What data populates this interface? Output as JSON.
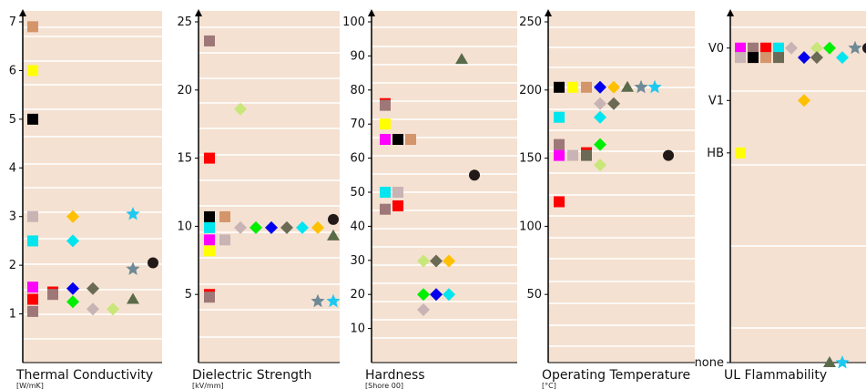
{
  "chart_data": [
    {
      "type": "scatter",
      "title": "Thermal Conductivity",
      "unit": "[W/mK]",
      "ylim": [
        0,
        7
      ],
      "yticks": [
        "1",
        "2",
        "3",
        "4",
        "5",
        "6",
        "7"
      ],
      "grid": true,
      "points": [
        {
          "y": 6.9,
          "color": "#d4956a",
          "shape": "square",
          "col": 0
        },
        {
          "y": 6.0,
          "color": "#ffff00",
          "shape": "square",
          "col": 0
        },
        {
          "y": 5.0,
          "color": "#000000",
          "shape": "square",
          "col": 0
        },
        {
          "y": 3.0,
          "color": "#c8b4b4",
          "shape": "square",
          "col": 0
        },
        {
          "y": 2.5,
          "color": "#00e5ee",
          "shape": "square",
          "col": 0
        },
        {
          "y": 1.55,
          "color": "#ff00ff",
          "shape": "square",
          "col": 0
        },
        {
          "y": 1.3,
          "color": "#ff0000",
          "shape": "square",
          "col": 0
        },
        {
          "y": 1.05,
          "color": "#9e7878",
          "shape": "square",
          "col": 0
        },
        {
          "y": 1.45,
          "color": "#ff0000",
          "shape": "square",
          "col": 1
        },
        {
          "y": 1.4,
          "color": "#9e7878",
          "shape": "square",
          "col": 1
        },
        {
          "y": 3.0,
          "color": "#ffc000",
          "shape": "diamond",
          "col": 2
        },
        {
          "y": 2.5,
          "color": "#00e5ee",
          "shape": "diamond",
          "col": 2
        },
        {
          "y": 1.52,
          "color": "#0000ee",
          "shape": "diamond",
          "col": 2
        },
        {
          "y": 1.25,
          "color": "#00ee00",
          "shape": "diamond",
          "col": 2
        },
        {
          "y": 1.52,
          "color": "#6b6b55",
          "shape": "diamond",
          "col": 3
        },
        {
          "y": 1.1,
          "color": "#c8b4b4",
          "shape": "diamond",
          "col": 3
        },
        {
          "y": 1.1,
          "color": "#c8e67a",
          "shape": "diamond",
          "col": 4
        },
        {
          "y": 1.3,
          "color": "#5a6b4a",
          "shape": "triangle",
          "col": 5
        },
        {
          "y": 3.05,
          "color": "#1ec8f0",
          "shape": "star",
          "col": 5
        },
        {
          "y": 1.92,
          "color": "#6e8a96",
          "shape": "star",
          "col": 5
        },
        {
          "y": 2.05,
          "color": "#221a18",
          "shape": "circle",
          "col": 6
        }
      ]
    },
    {
      "type": "scatter",
      "title": "Dielectric Strength",
      "unit": "[kV/mm]",
      "ylim": [
        0,
        25
      ],
      "yticks": [
        "5",
        "10",
        "15",
        "20",
        "25"
      ],
      "grid": true,
      "points": [
        {
          "y": 23.6,
          "color": "#9e7878",
          "shape": "square",
          "col": 0
        },
        {
          "y": 15.0,
          "color": "#ff0000",
          "shape": "square",
          "col": 0
        },
        {
          "y": 10.7,
          "color": "#000000",
          "shape": "square",
          "col": 0
        },
        {
          "y": 9.9,
          "color": "#00e5ee",
          "shape": "square",
          "col": 0
        },
        {
          "y": 9.0,
          "color": "#ff00ff",
          "shape": "square",
          "col": 0
        },
        {
          "y": 8.2,
          "color": "#ffff00",
          "shape": "square",
          "col": 0
        },
        {
          "y": 5.0,
          "color": "#ff0000",
          "shape": "square",
          "col": 0
        },
        {
          "y": 4.8,
          "color": "#9e7878",
          "shape": "square",
          "col": 0
        },
        {
          "y": 10.7,
          "color": "#d4956a",
          "shape": "square",
          "col": 1
        },
        {
          "y": 9.0,
          "color": "#c8b4b4",
          "shape": "square",
          "col": 1
        },
        {
          "y": 18.6,
          "color": "#c8e67a",
          "shape": "diamond",
          "col": 2
        },
        {
          "y": 9.9,
          "color": "#c8b4b4",
          "shape": "diamond",
          "col": 2
        },
        {
          "y": 9.9,
          "color": "#00ee00",
          "shape": "diamond",
          "col": 3
        },
        {
          "y": 9.9,
          "color": "#0000ee",
          "shape": "diamond",
          "col": 4
        },
        {
          "y": 9.9,
          "color": "#6b6b55",
          "shape": "diamond",
          "col": 5
        },
        {
          "y": 9.9,
          "color": "#00e5ee",
          "shape": "diamond",
          "col": 6
        },
        {
          "y": 9.9,
          "color": "#ffc000",
          "shape": "diamond",
          "col": 7
        },
        {
          "y": 4.5,
          "color": "#6e8a96",
          "shape": "star",
          "col": 7
        },
        {
          "y": 4.5,
          "color": "#1ec8f0",
          "shape": "star",
          "col": 8
        },
        {
          "y": 9.3,
          "color": "#5a6b4a",
          "shape": "triangle",
          "col": 8
        },
        {
          "y": 10.5,
          "color": "#221a18",
          "shape": "circle",
          "col": 8
        }
      ]
    },
    {
      "type": "scatter",
      "title": "Hardness",
      "unit": "[Shore 00]",
      "ylim": [
        0,
        100
      ],
      "yticks": [
        "10",
        "20",
        "30",
        "40",
        "50",
        "60",
        "70",
        "80",
        "90",
        "100"
      ],
      "grid": true,
      "points": [
        {
          "y": 76,
          "color": "#ff0000",
          "shape": "square",
          "col": 0
        },
        {
          "y": 75.5,
          "color": "#9e7878",
          "shape": "square",
          "col": 0
        },
        {
          "y": 70,
          "color": "#ffff00",
          "shape": "square",
          "col": 0
        },
        {
          "y": 65.5,
          "color": "#ff00ff",
          "shape": "square",
          "col": 0
        },
        {
          "y": 50,
          "color": "#00e5ee",
          "shape": "square",
          "col": 0
        },
        {
          "y": 45,
          "color": "#9e7878",
          "shape": "square",
          "col": 0
        },
        {
          "y": 65.5,
          "color": "#000000",
          "shape": "square",
          "col": 1
        },
        {
          "y": 50,
          "color": "#c8b4b4",
          "shape": "square",
          "col": 1
        },
        {
          "y": 46,
          "color": "#ff0000",
          "shape": "square",
          "col": 1
        },
        {
          "y": 65.5,
          "color": "#d4956a",
          "shape": "square",
          "col": 2
        },
        {
          "y": 29.8,
          "color": "#c8e67a",
          "shape": "diamond",
          "col": 3
        },
        {
          "y": 20,
          "color": "#00ee00",
          "shape": "diamond",
          "col": 3
        },
        {
          "y": 15.5,
          "color": "#c8b4b4",
          "shape": "diamond",
          "col": 3
        },
        {
          "y": 29.8,
          "color": "#6b6b55",
          "shape": "diamond",
          "col": 4
        },
        {
          "y": 20,
          "color": "#0000ee",
          "shape": "diamond",
          "col": 4
        },
        {
          "y": 29.8,
          "color": "#ffc000",
          "shape": "diamond",
          "col": 5
        },
        {
          "y": 20,
          "color": "#00e5ee",
          "shape": "diamond",
          "col": 5
        },
        {
          "y": 89,
          "color": "#5a6b4a",
          "shape": "triangle",
          "col": 6
        },
        {
          "y": 55,
          "color": "#221a18",
          "shape": "circle",
          "col": 7
        }
      ]
    },
    {
      "type": "scatter",
      "title": "Operating Temperature",
      "unit": "[°C]",
      "ylim": [
        0,
        250
      ],
      "yticks": [
        "50",
        "100",
        "150",
        "200",
        "250"
      ],
      "grid": true,
      "points": [
        {
          "y": 202,
          "color": "#000000",
          "shape": "square",
          "col": 0
        },
        {
          "y": 180,
          "color": "#00e5ee",
          "shape": "square",
          "col": 0
        },
        {
          "y": 160,
          "color": "#9e7878",
          "shape": "square",
          "col": 0
        },
        {
          "y": 152,
          "color": "#ff00ff",
          "shape": "square",
          "col": 0
        },
        {
          "y": 118,
          "color": "#ff0000",
          "shape": "square",
          "col": 0
        },
        {
          "y": 202,
          "color": "#ffff00",
          "shape": "square",
          "col": 1
        },
        {
          "y": 152,
          "color": "#c8b4b4",
          "shape": "square",
          "col": 1
        },
        {
          "y": 202,
          "color": "#d4956a",
          "shape": "square",
          "col": 2
        },
        {
          "y": 154,
          "color": "#ff0000",
          "shape": "square",
          "col": 2
        },
        {
          "y": 152,
          "color": "#6b6b55",
          "shape": "square",
          "col": 2
        },
        {
          "y": 202,
          "color": "#0000ee",
          "shape": "diamond",
          "col": 3
        },
        {
          "y": 190,
          "color": "#c8b4b4",
          "shape": "diamond",
          "col": 3
        },
        {
          "y": 180,
          "color": "#00e5ee",
          "shape": "diamond",
          "col": 3
        },
        {
          "y": 160,
          "color": "#00ee00",
          "shape": "diamond",
          "col": 3
        },
        {
          "y": 145,
          "color": "#c8e67a",
          "shape": "diamond",
          "col": 3
        },
        {
          "y": 202,
          "color": "#ffc000",
          "shape": "diamond",
          "col": 4
        },
        {
          "y": 190,
          "color": "#6b6b55",
          "shape": "diamond",
          "col": 4
        },
        {
          "y": 202,
          "color": "#5a6b4a",
          "shape": "triangle",
          "col": 5
        },
        {
          "y": 202,
          "color": "#6e8a96",
          "shape": "star",
          "col": 6
        },
        {
          "y": 202,
          "color": "#1ec8f0",
          "shape": "star",
          "col": 7
        },
        {
          "y": 152,
          "color": "#221a18",
          "shape": "circle",
          "col": 8
        }
      ]
    },
    {
      "type": "scatter",
      "title": "UL Flammability",
      "unit": "",
      "categories": [
        "none",
        "",
        "",
        "",
        "HB",
        "V1",
        "V0"
      ],
      "ylim": [
        0,
        6.5
      ],
      "yticks": [
        "none",
        "HB",
        "V1",
        "V0"
      ],
      "ytick_values": [
        0,
        4,
        5,
        6
      ],
      "grid": true,
      "points": [
        {
          "y": 6.0,
          "color": "#ff00ff",
          "shape": "square",
          "col": 0
        },
        {
          "y": 5.82,
          "color": "#c8b4b4",
          "shape": "square",
          "col": 0
        },
        {
          "y": 4.0,
          "color": "#ffff00",
          "shape": "square",
          "col": 0
        },
        {
          "y": 6.0,
          "color": "#9e7878",
          "shape": "square",
          "col": 1
        },
        {
          "y": 5.82,
          "color": "#000000",
          "shape": "square",
          "col": 1
        },
        {
          "y": 6.0,
          "color": "#ff0000",
          "shape": "square",
          "col": 2
        },
        {
          "y": 5.82,
          "color": "#d4956a",
          "shape": "square",
          "col": 2
        },
        {
          "y": 6.0,
          "color": "#00e5ee",
          "shape": "square",
          "col": 3
        },
        {
          "y": 5.82,
          "color": "#6b6b55",
          "shape": "square",
          "col": 3
        },
        {
          "y": 6.0,
          "color": "#c8b4b4",
          "shape": "diamond",
          "col": 4
        },
        {
          "y": 5.82,
          "color": "#0000ee",
          "shape": "diamond",
          "col": 5
        },
        {
          "y": 6.0,
          "color": "#c8e67a",
          "shape": "diamond",
          "col": 6
        },
        {
          "y": 5.0,
          "color": "#ffc000",
          "shape": "diamond",
          "col": 5
        },
        {
          "y": 5.82,
          "color": "#6b6b55",
          "shape": "diamond",
          "col": 6
        },
        {
          "y": 6.0,
          "color": "#00ee00",
          "shape": "diamond",
          "col": 7
        },
        {
          "y": 5.82,
          "color": "#00e5ee",
          "shape": "diamond",
          "col": 8
        },
        {
          "y": 6.0,
          "color": "#6e8a96",
          "shape": "star",
          "col": 9
        },
        {
          "y": 6.0,
          "color": "#221a18",
          "shape": "circle",
          "col": 10
        },
        {
          "y": 0.0,
          "color": "#5a6b4a",
          "shape": "triangle",
          "col": 7
        },
        {
          "y": 0.0,
          "color": "#1ec8f0",
          "shape": "star",
          "col": 8
        }
      ]
    }
  ]
}
